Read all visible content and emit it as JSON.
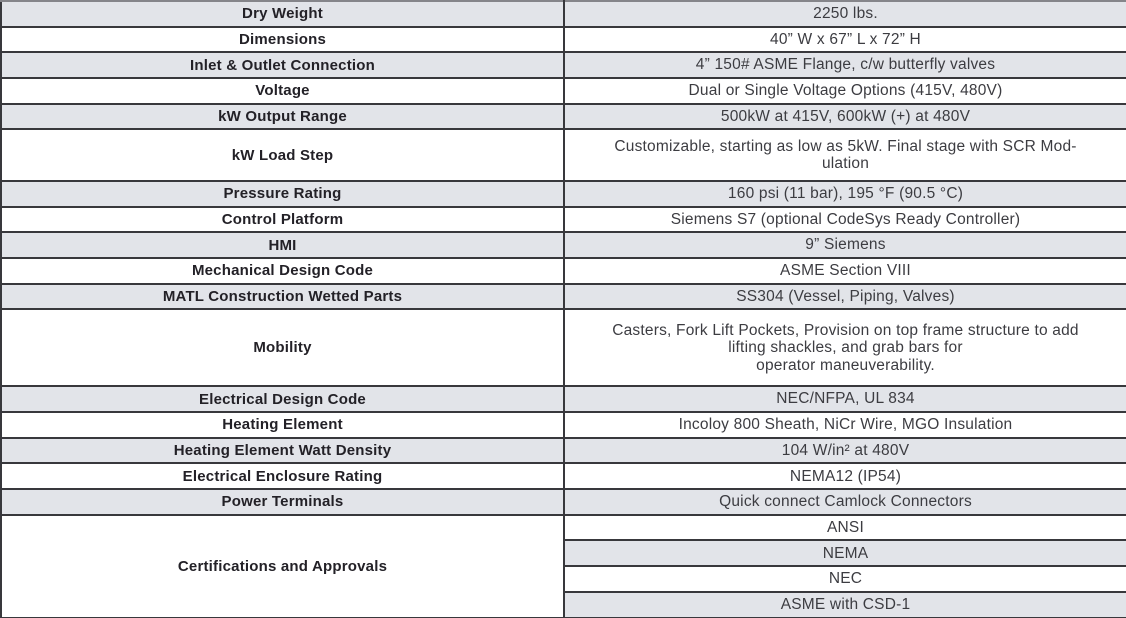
{
  "colors": {
    "row_gray": "#e2e4e9",
    "row_white": "#ffffff",
    "border_dark": "#38383c",
    "border_top_gray": "#85858a",
    "label_text": "#232127",
    "value_text": "#3c3c41"
  },
  "table": {
    "rows": [
      {
        "label": "Dry Weight",
        "value": "2250 lbs.",
        "shade": "gray",
        "units": 1
      },
      {
        "label": "Dimensions",
        "value": "40” W x 67” L x 72” H",
        "shade": "white",
        "units": 1
      },
      {
        "label": "Inlet & Outlet Connection",
        "value": "4” 150# ASME Flange, c/w butterfly valves",
        "shade": "gray",
        "units": 1
      },
      {
        "label": "Voltage",
        "value": "Dual or Single Voltage Options (415V, 480V)",
        "shade": "white",
        "units": 1
      },
      {
        "label": "kW Output Range",
        "value": "500kW at 415V, 600kW (+) at 480V",
        "shade": "gray",
        "units": 1
      },
      {
        "label": "kW Load Step",
        "value": "Customizable, starting as low as 5kW. Final stage with SCR Mod-\nulation",
        "shade": "white",
        "units": 2
      },
      {
        "label": "Pressure Rating",
        "value": "160 psi (11 bar), 195 °F (90.5 °C)",
        "shade": "gray",
        "units": 1
      },
      {
        "label": "Control Platform",
        "value": "Siemens S7 (optional CodeSys Ready Controller)",
        "shade": "white",
        "units": 1
      },
      {
        "label": "HMI",
        "value": "9” Siemens",
        "shade": "gray",
        "units": 1
      },
      {
        "label": "Mechanical Design Code",
        "value": "ASME Section VIII",
        "shade": "white",
        "units": 1
      },
      {
        "label": "MATL Construction Wetted Parts",
        "value": "SS304 (Vessel, Piping, Valves)",
        "shade": "gray",
        "units": 1
      },
      {
        "label": "Mobility",
        "value": "Casters, Fork Lift Pockets, Provision on top frame structure to add\nlifting shackles, and grab bars for\noperator maneuverability.",
        "shade": "white",
        "units": 3
      },
      {
        "label": "Electrical Design Code",
        "value": "NEC/NFPA, UL 834",
        "shade": "gray",
        "units": 1
      },
      {
        "label": "Heating Element",
        "value": "Incoloy 800 Sheath, NiCr Wire, MGO Insulation",
        "shade": "white",
        "units": 1
      },
      {
        "label": "Heating Element Watt Density",
        "value": "104 W/in² at 480V",
        "shade": "gray",
        "units": 1
      },
      {
        "label": "Electrical Enclosure Rating",
        "value": "NEMA12 (IP54)",
        "shade": "white",
        "units": 1
      },
      {
        "label": "Power Terminals",
        "value": "Quick connect Camlock Connectors",
        "shade": "gray",
        "units": 1
      },
      {
        "label": "Certifications and Approvals",
        "shade": "white",
        "subvalues": [
          {
            "text": "ANSI",
            "shade": "white"
          },
          {
            "text": "NEMA",
            "shade": "gray"
          },
          {
            "text": "NEC",
            "shade": "white"
          },
          {
            "text": "ASME with CSD-1",
            "shade": "gray"
          }
        ]
      }
    ]
  }
}
